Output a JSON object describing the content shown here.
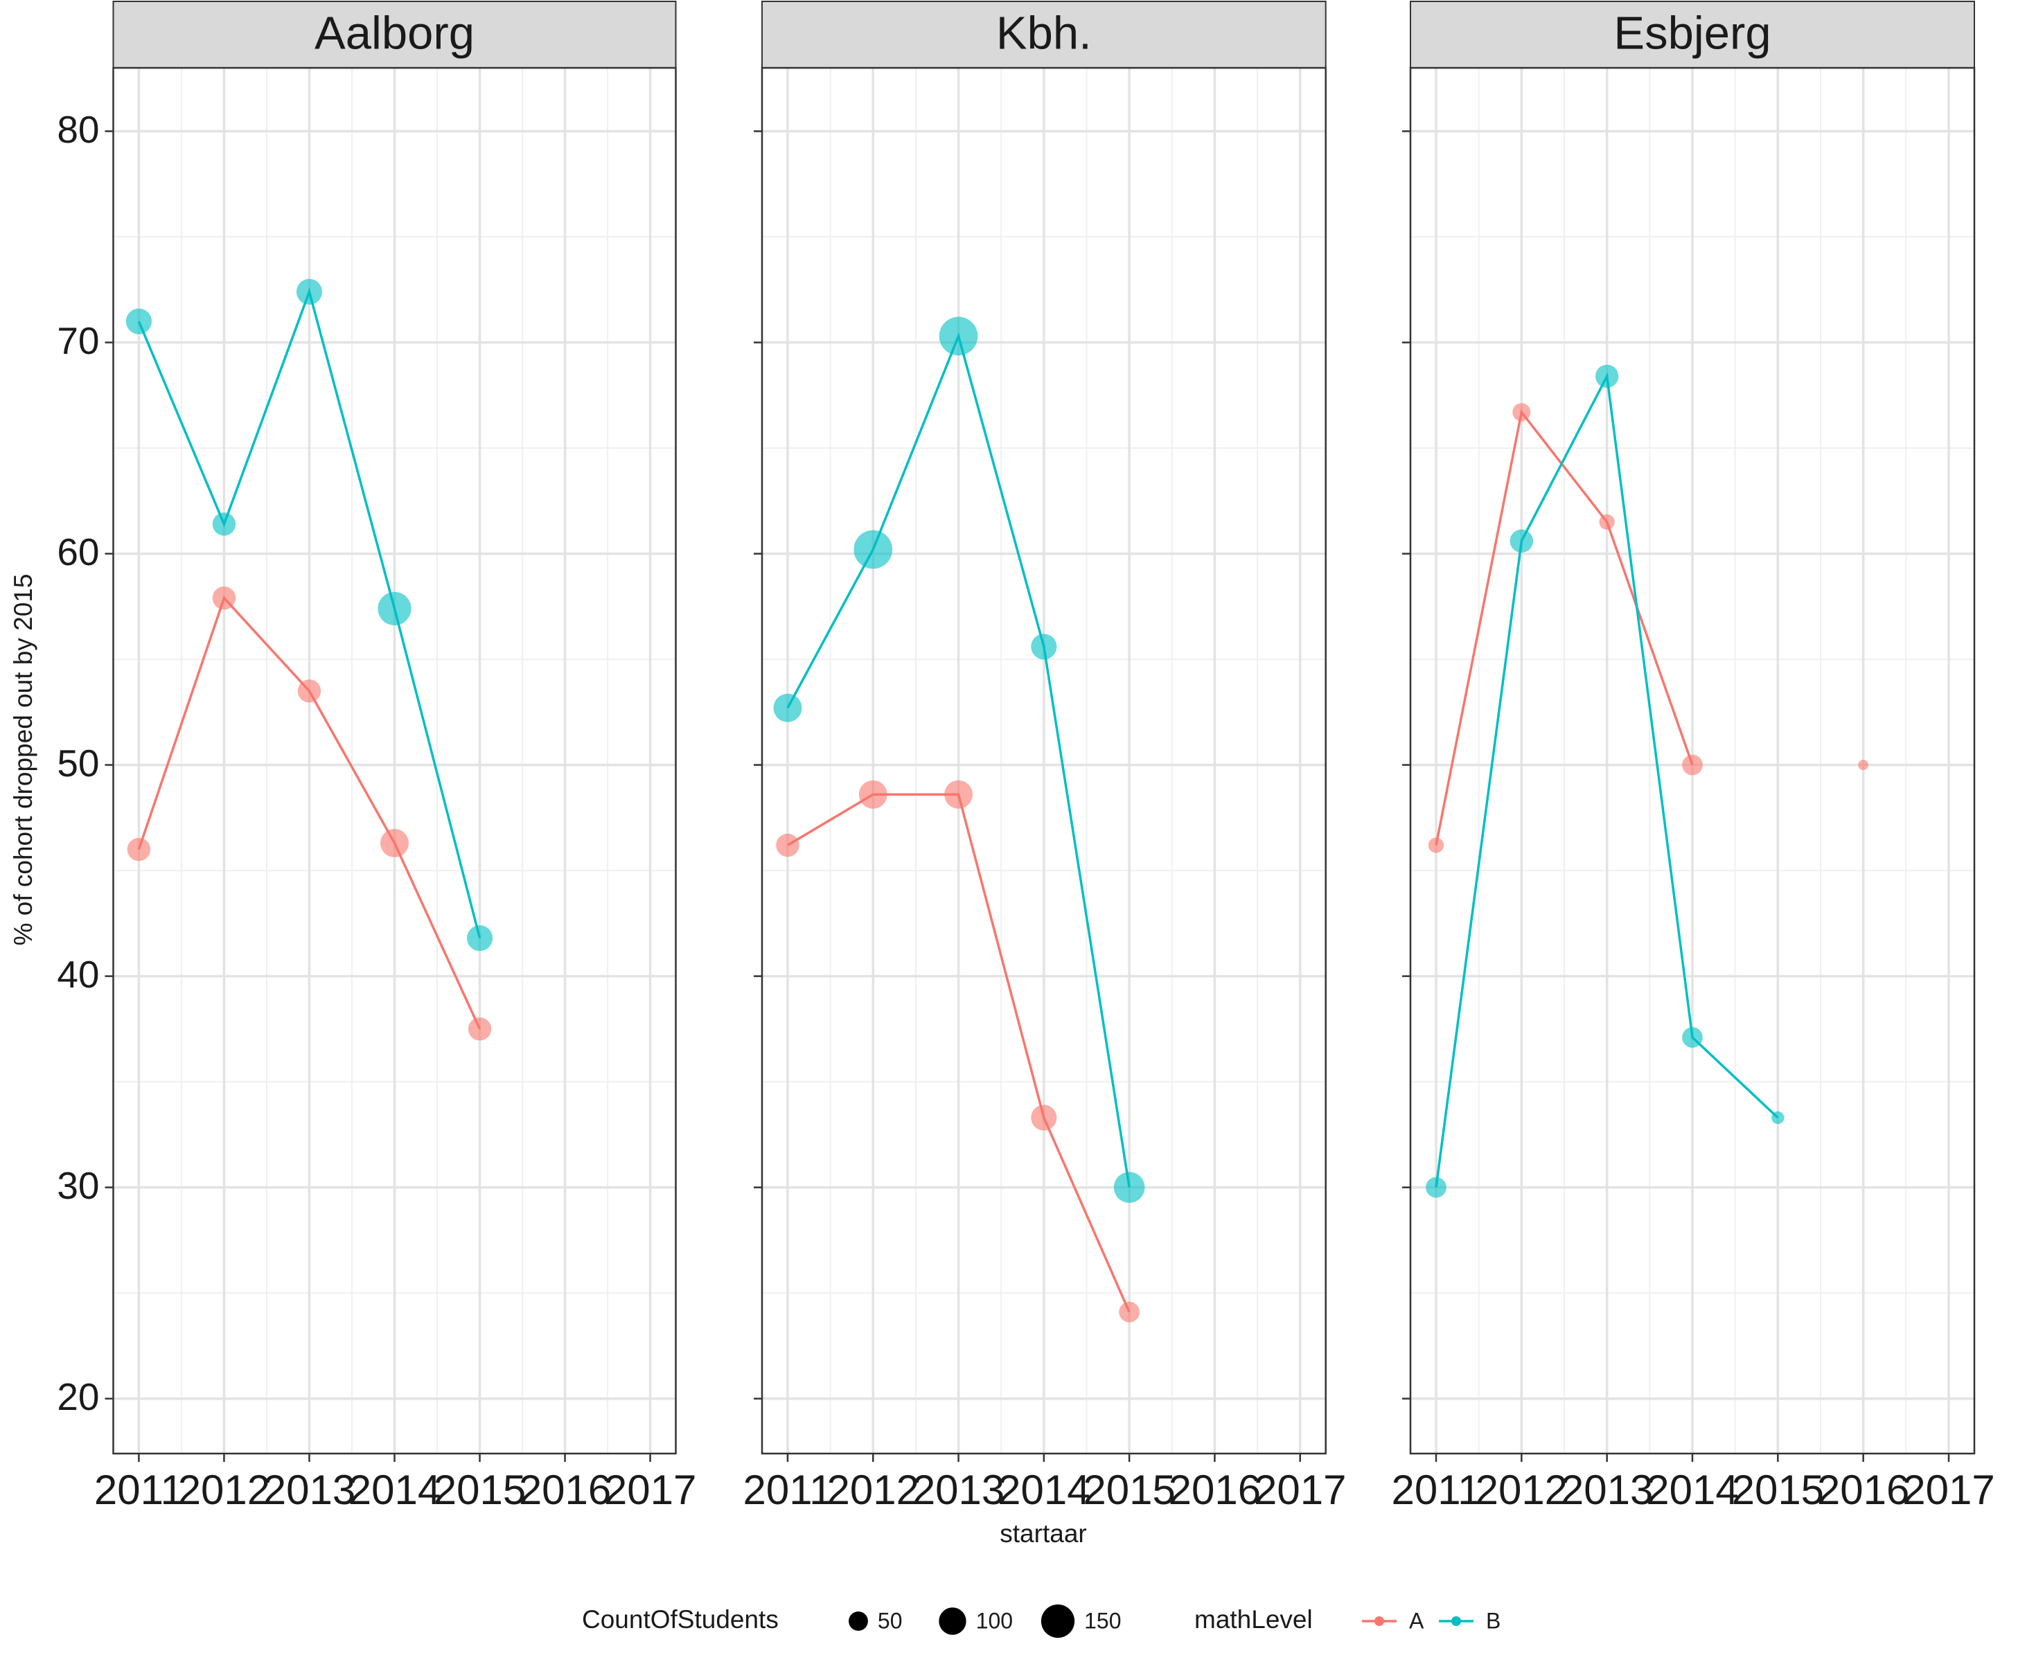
{
  "chart_data": {
    "type": "line",
    "x_label": "startaar",
    "y_label": "% of cohort dropped out by 2015",
    "x": [
      2011,
      2012,
      2013,
      2014,
      2015,
      2016
    ],
    "xlim": [
      2010.7,
      2017.3
    ],
    "xticks": [
      2011,
      2012,
      2013,
      2014,
      2015,
      2016,
      2017
    ],
    "minor_xticks": [
      2011.5,
      2012.5,
      2013.5,
      2014.5,
      2015.5,
      2016.5
    ],
    "ylim": [
      17.4,
      83.0
    ],
    "yticks": [
      20,
      30,
      40,
      50,
      60,
      70,
      80
    ],
    "minor_yticks": [
      25,
      35,
      45,
      55,
      65,
      75
    ],
    "grid": true,
    "legend_title": "mathLevel",
    "size_legend": {
      "title": "CountOfStudents",
      "values": [
        50,
        100,
        150
      ]
    },
    "facets": [
      {
        "title": "Aalborg",
        "series": [
          {
            "name": "A",
            "color": "#F8766D",
            "values": [
              46.0,
              57.9,
              53.5,
              46.3,
              37.5,
              null
            ],
            "sizes": [
              72,
              72,
              72,
              108,
              72,
              null
            ]
          },
          {
            "name": "B",
            "color": "#00BFC4",
            "values": [
              71.0,
              61.4,
              72.4,
              57.4,
              41.8,
              null
            ],
            "sizes": [
              89,
              72,
              89,
              150,
              89,
              null
            ]
          }
        ]
      },
      {
        "title": "Kbh.",
        "series": [
          {
            "name": "A",
            "color": "#F8766D",
            "values": [
              46.2,
              48.6,
              48.6,
              33.3,
              24.1,
              null
            ],
            "sizes": [
              72,
              108,
              108,
              89,
              57,
              null
            ]
          },
          {
            "name": "B",
            "color": "#00BFC4",
            "values": [
              52.7,
              60.2,
              70.3,
              55.6,
              30.0,
              null
            ],
            "sizes": [
              108,
              200,
              200,
              89,
              128,
              null
            ]
          }
        ]
      },
      {
        "title": "Esbjerg",
        "series": [
          {
            "name": "A",
            "color": "#F8766D",
            "values": [
              46.2,
              66.7,
              61.5,
              50.0,
              null,
              50.0
            ],
            "sizes": [
              32,
              44,
              32,
              57,
              null,
              14
            ]
          },
          {
            "name": "B",
            "color": "#00BFC4",
            "values": [
              30.0,
              60.6,
              68.4,
              37.1,
              33.3,
              null
            ],
            "sizes": [
              57,
              72,
              72,
              57,
              22,
              null
            ]
          }
        ]
      }
    ]
  }
}
